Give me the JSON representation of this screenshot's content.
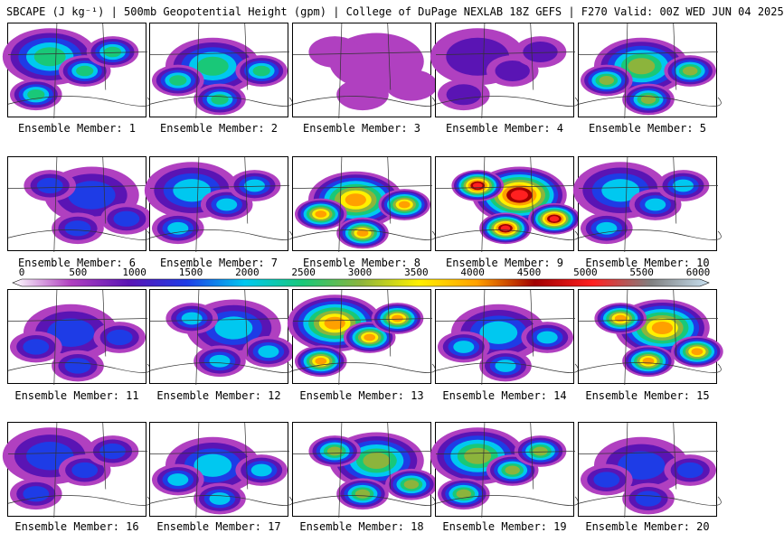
{
  "title": "SBCAPE (J kg⁻¹) | 500mb Geopotential Height (gpm) | College of DuPage NEXLAB 18Z GEFS | F270 Valid: 00Z WED JUN 04 2025",
  "caption_prefix": "Ensemble Member: ",
  "members": [
    {
      "number": "1",
      "max_cape": 2600
    },
    {
      "number": "2",
      "max_cape": 2500
    },
    {
      "number": "3",
      "max_cape": 900
    },
    {
      "number": "4",
      "max_cape": 1300
    },
    {
      "number": "5",
      "max_cape": 3300
    },
    {
      "number": "6",
      "max_cape": 1800
    },
    {
      "number": "7",
      "max_cape": 2000
    },
    {
      "number": "8",
      "max_cape": 4200
    },
    {
      "number": "9",
      "max_cape": 5000
    },
    {
      "number": "10",
      "max_cape": 2400
    },
    {
      "number": "11",
      "max_cape": 1900
    },
    {
      "number": "12",
      "max_cape": 2100
    },
    {
      "number": "13",
      "max_cape": 4300
    },
    {
      "number": "14",
      "max_cape": 2300
    },
    {
      "number": "15",
      "max_cape": 4400
    },
    {
      "number": "16",
      "max_cape": 1600
    },
    {
      "number": "17",
      "max_cape": 2200
    },
    {
      "number": "18",
      "max_cape": 3200
    },
    {
      "number": "19",
      "max_cape": 3100
    },
    {
      "number": "20",
      "max_cape": 1700
    }
  ],
  "colorbar": {
    "min": 0,
    "max": 6000,
    "tick_labels": [
      "0",
      "500",
      "1000",
      "1500",
      "2000",
      "2500",
      "3000",
      "3500",
      "4000",
      "4500",
      "5000",
      "5500",
      "6000"
    ],
    "stops": [
      {
        "value": 0,
        "color": "#ffffff"
      },
      {
        "value": 500,
        "color": "#b040c0"
      },
      {
        "value": 1000,
        "color": "#5a14b4"
      },
      {
        "value": 1500,
        "color": "#1e3ce6"
      },
      {
        "value": 2000,
        "color": "#00c8f0"
      },
      {
        "value": 2500,
        "color": "#19c878"
      },
      {
        "value": 3000,
        "color": "#8cb43c"
      },
      {
        "value": 3500,
        "color": "#fff000"
      },
      {
        "value": 4000,
        "color": "#ffa000"
      },
      {
        "value": 4500,
        "color": "#a00000"
      },
      {
        "value": 5000,
        "color": "#ff2020"
      },
      {
        "value": 5500,
        "color": "#808080"
      },
      {
        "value": 6000,
        "color": "#c8e0f0"
      }
    ]
  }
}
